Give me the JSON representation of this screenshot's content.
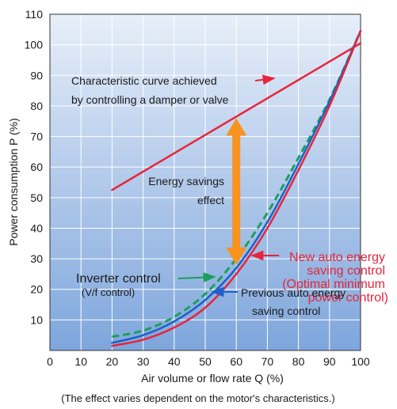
{
  "chart_data": {
    "type": "line",
    "xlabel": "Air volume or flow rate Q (%)",
    "ylabel": "Power consumption P (%)",
    "xlim": [
      0,
      100
    ],
    "ylim": [
      0,
      110
    ],
    "x_ticks": [
      "0",
      "10",
      "20",
      "30",
      "40",
      "50",
      "60",
      "70",
      "80",
      "90",
      "100"
    ],
    "y_ticks": [
      "10",
      "20",
      "30",
      "40",
      "50",
      "60",
      "70",
      "80",
      "90",
      "100",
      "110"
    ],
    "grid": true,
    "footnote": "(The effect varies dependent on the motor's characteristics.)",
    "series": [
      {
        "name": "Characteristic curve achieved by controlling a damper or valve",
        "color": "#e8243a",
        "style": "solid",
        "x": [
          20,
          100
        ],
        "y": [
          52.5,
          100.5
        ]
      },
      {
        "name": "Inverter control (V/f control)",
        "color": "#1aa05a",
        "style": "dashed",
        "x": [
          20,
          30,
          40,
          50,
          60,
          70,
          80,
          90,
          100
        ],
        "y": [
          4.5,
          6.5,
          11,
          18.5,
          30,
          45,
          63,
          82,
          104.5
        ]
      },
      {
        "name": "Previous auto energy saving control",
        "color": "#1f5fc8",
        "style": "solid",
        "x": [
          20,
          30,
          40,
          50,
          60,
          70,
          80,
          90,
          100
        ],
        "y": [
          2.5,
          5,
          9.5,
          16.5,
          27,
          42,
          61,
          81.5,
          104.5
        ]
      },
      {
        "name": "New auto energy saving control (Optimal minimum power control)",
        "color": "#e8243a",
        "style": "solid",
        "x": [
          20,
          30,
          40,
          50,
          60,
          70,
          80,
          90,
          100
        ],
        "y": [
          1.5,
          3.5,
          7.5,
          14,
          25,
          40,
          59,
          80,
          104.5
        ]
      }
    ],
    "annotations": {
      "damper_line1": "Characteristic curve achieved",
      "damper_line2": "by controlling a damper or valve",
      "savings_line1": "Energy savings",
      "savings_line2": "effect",
      "inverter_line1": "Inverter control",
      "inverter_line2": "(V/f control)",
      "new_line1": "New auto energy",
      "new_line2": "saving control",
      "new_line3": "(Optimal minimum",
      "new_line4": "power control)",
      "prev_line1": "Previous auto energy",
      "prev_line2": "saving control"
    },
    "savings_arrow": {
      "x": 60,
      "y_top": 76,
      "y_bottom": 28,
      "color": "#f7931e"
    }
  }
}
